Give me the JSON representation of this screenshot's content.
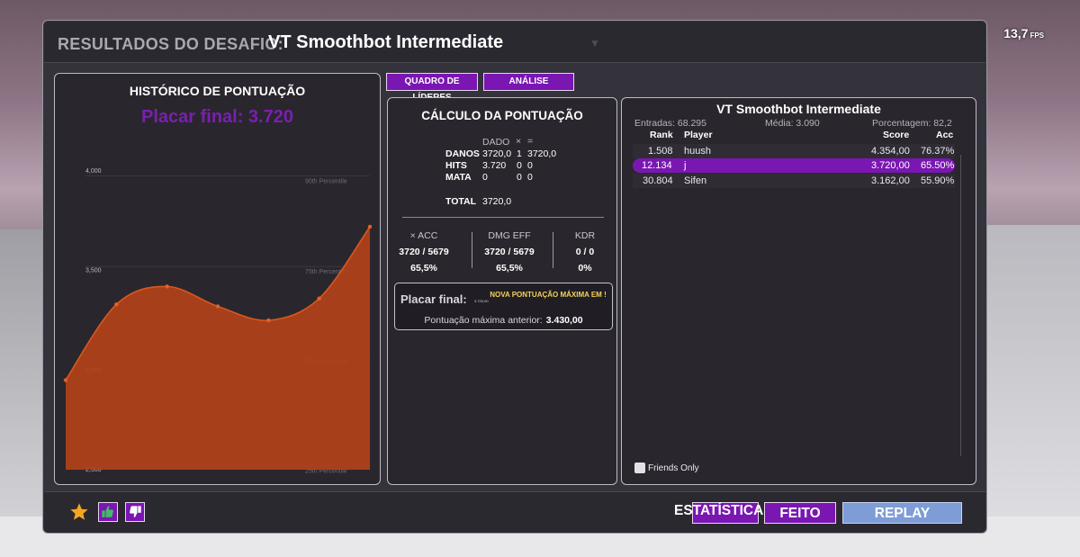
{
  "fps": {
    "value": "13,7",
    "unit": "FPS"
  },
  "header": {
    "prefix": "RESULTADOS DO DESAFIO:",
    "scenario": "VT Smoothbot Intermediate"
  },
  "history": {
    "title": "HISTÓRICO DE PONTUAÇÃO",
    "final_score": "Placar final: 3.720"
  },
  "chart_data": {
    "type": "area",
    "title": "",
    "y_ticks": [
      "4,000",
      "3,500",
      "3,000",
      "2,500"
    ],
    "ylim": [
      2500,
      4000
    ],
    "percentile_lines": [
      {
        "label": "90th Percentile",
        "value": 3975
      },
      {
        "label": "75th Percentile",
        "value": 3520
      },
      {
        "label": "50th Percentile",
        "value": 3070
      },
      {
        "label": "25th Percentile",
        "value": 2520
      }
    ],
    "values": [
      2950,
      3330,
      3420,
      3320,
      3250,
      3360,
      3720
    ],
    "color": "#b3411a"
  },
  "tabs": {
    "leaders": "QUADRO DE LÍDERES",
    "analysis": "ANÁLISE"
  },
  "calc": {
    "title": "CÁLCULO DA PONTUAÇÃO",
    "col_data": "DADO",
    "col_mult": "×",
    "col_eq": "=",
    "rows": [
      {
        "label": "DANOS",
        "data": "3720,0",
        "mult": "1",
        "result": "3720,0"
      },
      {
        "label": "HITS",
        "data": "3.720",
        "mult": "0",
        "result": "0"
      },
      {
        "label": "MATA",
        "data": "0",
        "mult": "0",
        "result": "0"
      }
    ],
    "total_label": "TOTAL",
    "total_value": "3720,0",
    "stats": [
      {
        "head": "× ACC",
        "ratio": "3720 / 5679",
        "pct": "65,5%"
      },
      {
        "head": "DMG EFF",
        "ratio": "3720 / 5679",
        "pct": "65,5%"
      },
      {
        "head": "KDR",
        "ratio": "0 / 0",
        "pct": "0%"
      }
    ],
    "final_label": "Placar final:",
    "final_tiny": "3.720,00",
    "new_high": "NOVA PONTUAÇÃO MÁXIMA EM !",
    "prev_label": "Pontuação máxima anterior:",
    "prev_value": "3.430,00"
  },
  "board": {
    "title": "VT Smoothbot Intermediate",
    "entries": "Entradas: 68.295",
    "average": "Média: 3.090",
    "percentage": "Porcentagem: 82,2",
    "headers": {
      "rank": "Rank",
      "player": "Player",
      "score": "Score",
      "acc": "Acc"
    },
    "rows": [
      {
        "rank": "1.508",
        "player": "huush",
        "score": "4.354,00",
        "acc": "76.37%"
      },
      {
        "rank": "12.134",
        "player": "j",
        "score": "3.720,00",
        "acc": "65.50%"
      },
      {
        "rank": "30.804",
        "player": "Sifen",
        "score": "3.162,00",
        "acc": "55.90%"
      }
    ],
    "friends_only": "Friends Only"
  },
  "footer": {
    "stats": "ESTATÍSTICAS",
    "done": "FEITO",
    "replay": "REPLAY",
    "icons": [
      "star-icon",
      "thumbs-up-icon",
      "thumbs-down-icon"
    ]
  }
}
